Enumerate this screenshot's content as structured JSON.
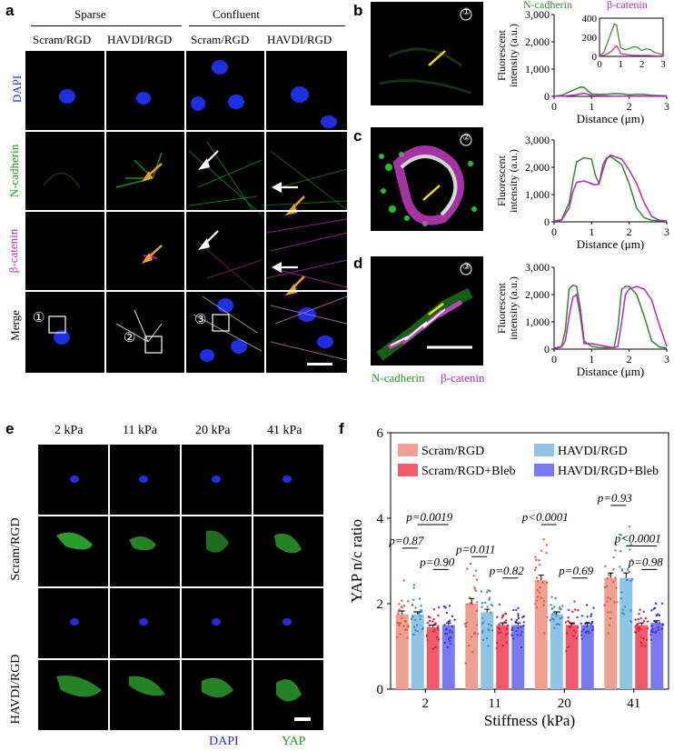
{
  "panel_a": {
    "label": "a",
    "groups": [
      "Sparse",
      "Confluent"
    ],
    "columns": [
      "Scram/RGD",
      "HAVDI/RGD",
      "Scram/RGD",
      "HAVDI/RGD"
    ],
    "rows": [
      "DAPI",
      "N-cadherin",
      "β-catenin",
      "Merge"
    ],
    "row_colors": [
      "#2233dd",
      "#229922",
      "#cc22cc",
      "#000000"
    ],
    "roi_labels": [
      "①",
      "②",
      "③"
    ]
  },
  "panel_b": {
    "label": "b",
    "roi": "①"
  },
  "panel_c": {
    "label": "c",
    "roi": "②"
  },
  "panel_d": {
    "label": "d",
    "roi": "③"
  },
  "profile_legend": {
    "series1": "N-cadherin",
    "series2": "β-catenin",
    "color1": "#2e8b2e",
    "color2": "#bb22bb"
  },
  "merge_legend": {
    "series1": "N-cadherin",
    "series2": "β-catenin"
  },
  "panel_e": {
    "label": "e",
    "stiffness": [
      "2 kPa",
      "11 kPa",
      "20 kPa",
      "41 kPa"
    ],
    "rows": [
      "Scram/RGD",
      "HAVDI/RGD"
    ],
    "channels": [
      "DAPI",
      "YAP"
    ],
    "channel_colors": [
      "#2233dd",
      "#229922"
    ]
  },
  "panel_f": {
    "label": "f"
  },
  "chart_data": [
    {
      "type": "line",
      "panel": "b",
      "ylabel": "Fluorescent intensity (a.u.)",
      "xlabel": "Distance (μm)",
      "xlim": [
        0,
        3
      ],
      "ylim": [
        0,
        3000
      ],
      "xticks": [
        "0",
        "1",
        "2",
        "3"
      ],
      "yticks": [
        "0",
        "1,000",
        "2,000",
        "3,000"
      ],
      "series": [
        {
          "name": "N-cadherin",
          "x": [
            0,
            0.2,
            0.4,
            0.6,
            0.7,
            0.8,
            0.9,
            1.0,
            1.2,
            1.4,
            1.6,
            1.8,
            2.0,
            2.2,
            2.4,
            2.6,
            2.8,
            3.0
          ],
          "y": [
            10,
            40,
            160,
            280,
            340,
            330,
            200,
            90,
            70,
            80,
            100,
            95,
            60,
            80,
            70,
            40,
            30,
            20
          ]
        },
        {
          "name": "β-catenin",
          "x": [
            0,
            0.2,
            0.4,
            0.6,
            0.7,
            0.8,
            0.9,
            1.0,
            1.2,
            1.4,
            1.6,
            1.8,
            2.0,
            2.2,
            2.4,
            2.6,
            2.8,
            3.0
          ],
          "y": [
            5,
            10,
            30,
            60,
            90,
            110,
            80,
            30,
            20,
            15,
            10,
            10,
            8,
            10,
            8,
            5,
            5,
            5
          ]
        }
      ],
      "inset": {
        "ylim": [
          0,
          400
        ],
        "yticks": [
          "0",
          "200",
          "400"
        ],
        "xticks": [
          "0",
          "1",
          "2",
          "3"
        ]
      }
    },
    {
      "type": "line",
      "panel": "c",
      "ylabel": "Fluorescent intensity (a.u.)",
      "xlabel": "Distance (μm)",
      "xlim": [
        0,
        3
      ],
      "ylim": [
        0,
        3000
      ],
      "xticks": [
        "0",
        "1",
        "2",
        "3"
      ],
      "yticks": [
        "0",
        "1,000",
        "2,000",
        "3,000"
      ],
      "series": [
        {
          "name": "N-cadherin",
          "x": [
            0,
            0.2,
            0.4,
            0.5,
            0.6,
            0.8,
            1.0,
            1.1,
            1.2,
            1.3,
            1.4,
            1.5,
            1.6,
            1.8,
            2.0,
            2.2,
            2.4,
            2.6,
            2.8,
            3.0
          ],
          "y": [
            30,
            80,
            700,
            1500,
            2200,
            2350,
            2300,
            1700,
            1400,
            2100,
            2350,
            2400,
            2300,
            2100,
            1400,
            500,
            150,
            60,
            40,
            30
          ]
        },
        {
          "name": "β-catenin",
          "x": [
            0,
            0.2,
            0.4,
            0.5,
            0.6,
            0.8,
            1.0,
            1.1,
            1.2,
            1.3,
            1.4,
            1.5,
            1.6,
            1.8,
            2.0,
            2.2,
            2.4,
            2.6,
            2.8,
            3.0
          ],
          "y": [
            20,
            60,
            500,
            1100,
            1450,
            1500,
            1400,
            1350,
            1400,
            1900,
            2300,
            2450,
            2400,
            2300,
            1900,
            1400,
            700,
            200,
            60,
            30
          ]
        }
      ]
    },
    {
      "type": "line",
      "panel": "d",
      "ylabel": "Fluorescent intensity (a.u.)",
      "xlabel": "Distance (μm)",
      "xlim": [
        0,
        3
      ],
      "ylim": [
        0,
        3000
      ],
      "xticks": [
        "0",
        "1",
        "2",
        "3"
      ],
      "yticks": [
        "0",
        "1,000",
        "2,000",
        "3,000"
      ],
      "series": [
        {
          "name": "N-cadherin",
          "x": [
            0,
            0.2,
            0.3,
            0.4,
            0.5,
            0.6,
            0.7,
            0.8,
            1.0,
            1.2,
            1.4,
            1.6,
            1.7,
            1.8,
            1.9,
            2.0,
            2.2,
            2.4,
            2.6,
            2.8,
            3.0
          ],
          "y": [
            30,
            100,
            700,
            2200,
            2350,
            2300,
            1500,
            300,
            100,
            60,
            50,
            60,
            800,
            2200,
            2300,
            2300,
            2000,
            1200,
            300,
            80,
            40
          ]
        },
        {
          "name": "β-catenin",
          "x": [
            0,
            0.2,
            0.3,
            0.4,
            0.5,
            0.6,
            0.7,
            0.8,
            1.0,
            1.2,
            1.4,
            1.6,
            1.7,
            1.8,
            1.9,
            2.0,
            2.2,
            2.4,
            2.6,
            2.8,
            3.0
          ],
          "y": [
            20,
            80,
            300,
            1200,
            1900,
            2000,
            1200,
            200,
            200,
            150,
            100,
            50,
            100,
            1000,
            2000,
            2200,
            2300,
            2200,
            1800,
            900,
            100
          ]
        }
      ]
    },
    {
      "type": "bar",
      "panel": "f",
      "ylabel": "YAP n/c ratio",
      "xlabel": "Stiffness (kPa)",
      "categories": [
        "2",
        "11",
        "20",
        "41"
      ],
      "ylim": [
        0,
        6
      ],
      "yticks": [
        "0",
        "2",
        "4",
        "6"
      ],
      "legend": "top",
      "series": [
        {
          "name": "Scram/RGD",
          "color": "#f0a090",
          "values": [
            1.75,
            2.0,
            2.55,
            2.6
          ],
          "errors": [
            0.08,
            0.12,
            0.12,
            0.12
          ]
        },
        {
          "name": "HAVDI/RGD",
          "color": "#90c4e4",
          "values": [
            1.75,
            1.8,
            1.75,
            2.6
          ],
          "errors": [
            0.06,
            0.07,
            0.06,
            0.12
          ]
        },
        {
          "name": "Scram/RGD+Bleb",
          "color": "#f05a6a",
          "values": [
            1.45,
            1.5,
            1.5,
            1.5
          ],
          "errors": [
            0.05,
            0.05,
            0.05,
            0.05
          ]
        },
        {
          "name": "HAVDI/RGD+Bleb",
          "color": "#7a7af0",
          "values": [
            1.5,
            1.5,
            1.5,
            1.55
          ],
          "errors": [
            0.05,
            0.05,
            0.05,
            0.05
          ]
        }
      ],
      "annotations": [
        {
          "category": "2",
          "text": "p=0.87",
          "between": [
            0,
            1
          ]
        },
        {
          "category": "2",
          "text": "p=0.0019",
          "between": [
            1,
            3
          ]
        },
        {
          "category": "2",
          "text": "p=0.90",
          "between": [
            2,
            3
          ]
        },
        {
          "category": "11",
          "text": "p=0.011",
          "between": [
            0,
            1
          ]
        },
        {
          "category": "11",
          "text": "p=0.82",
          "between": [
            2,
            3
          ]
        },
        {
          "category": "20",
          "text": "p<0.0001",
          "between": [
            0,
            1
          ]
        },
        {
          "category": "20",
          "text": "p=0.69",
          "between": [
            2,
            3
          ]
        },
        {
          "category": "41",
          "text": "p<0.0001",
          "between": [
            1,
            3
          ]
        },
        {
          "category": "41",
          "text": "p=0.93",
          "between": [
            0,
            1
          ]
        },
        {
          "category": "41",
          "text": "p=0.98",
          "between": [
            2,
            3
          ]
        }
      ]
    }
  ]
}
